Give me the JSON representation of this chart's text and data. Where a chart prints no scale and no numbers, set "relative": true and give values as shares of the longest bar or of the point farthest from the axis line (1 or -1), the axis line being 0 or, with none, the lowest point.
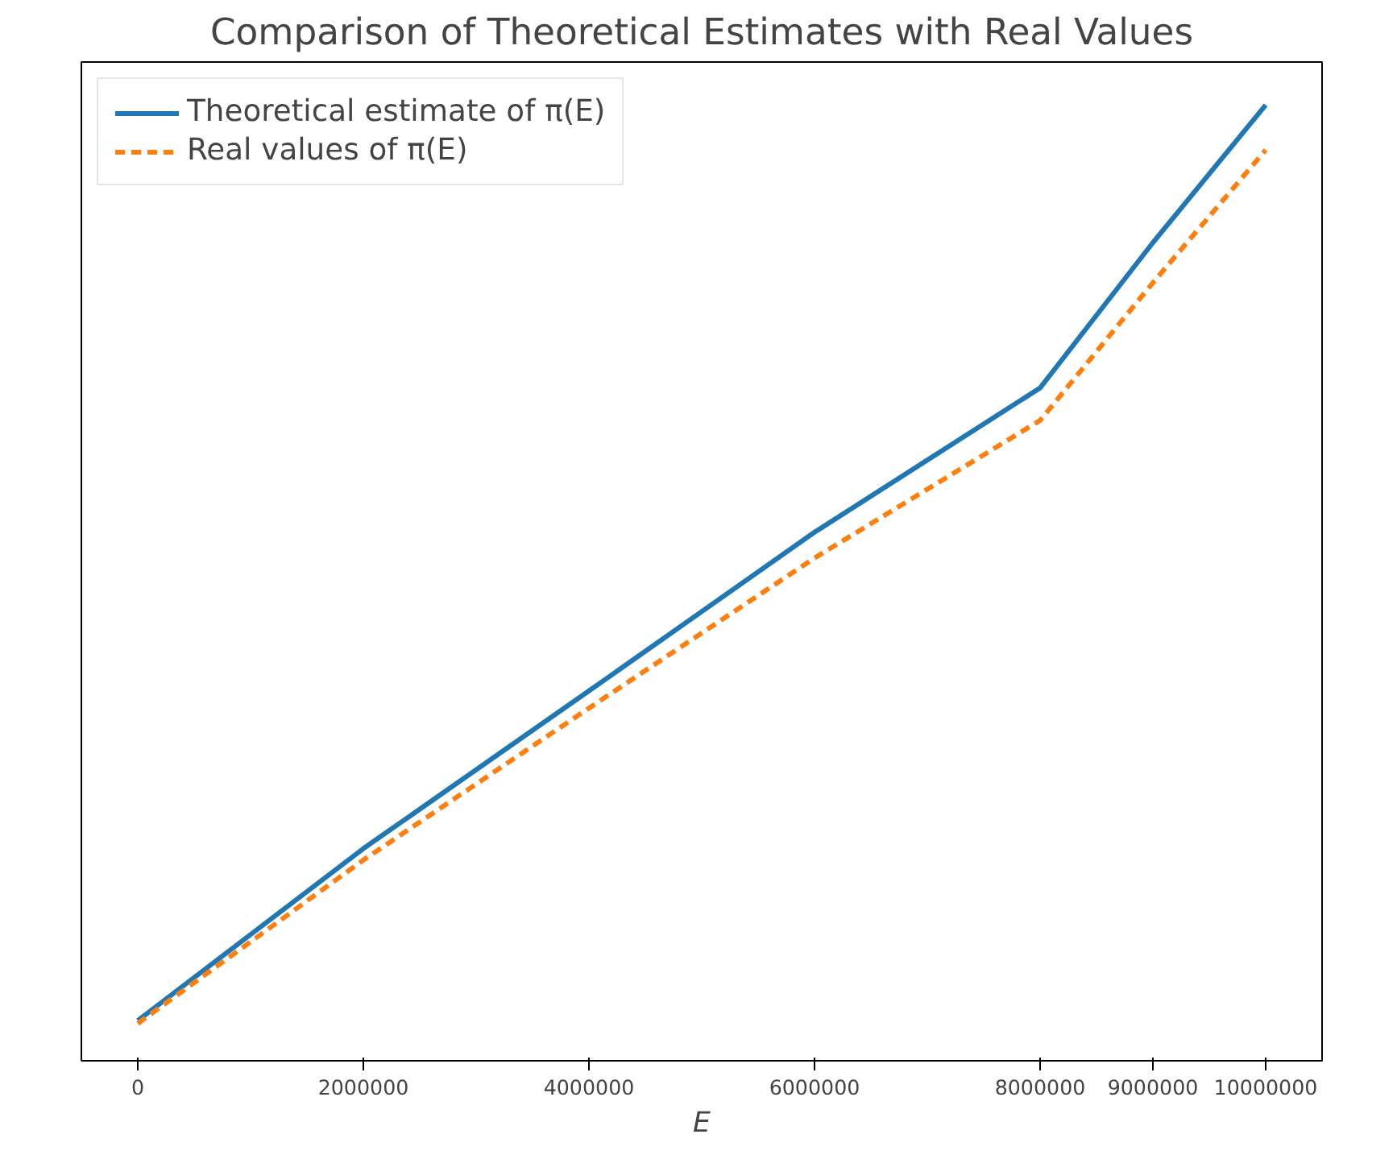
{
  "chart_data": {
    "type": "line",
    "title": "Comparison of Theoretical Estimates with Real Values",
    "xlabel": "E",
    "x": [
      0,
      2000000,
      4000000,
      6000000,
      8000000,
      9000000,
      10000000
    ],
    "xlim": [
      -500000,
      10500000
    ],
    "xticks": [
      0,
      2000000,
      4000000,
      6000000,
      8000000,
      9000000,
      10000000
    ],
    "relative": true,
    "legend": "top left",
    "grid": false,
    "series": [
      {
        "name": "Theoretical estimate of π(E)",
        "color": "#1f77b4",
        "line_style": "solid",
        "values": [
          0.042,
          0.222,
          0.387,
          0.553,
          0.704,
          0.856,
          1
        ]
      },
      {
        "name": "Real values of π(E)",
        "color": "#ff7f0e",
        "line_style": "dashed",
        "values": [
          0.039,
          0.21,
          0.369,
          0.526,
          0.67,
          0.814,
          0.953
        ]
      }
    ]
  }
}
